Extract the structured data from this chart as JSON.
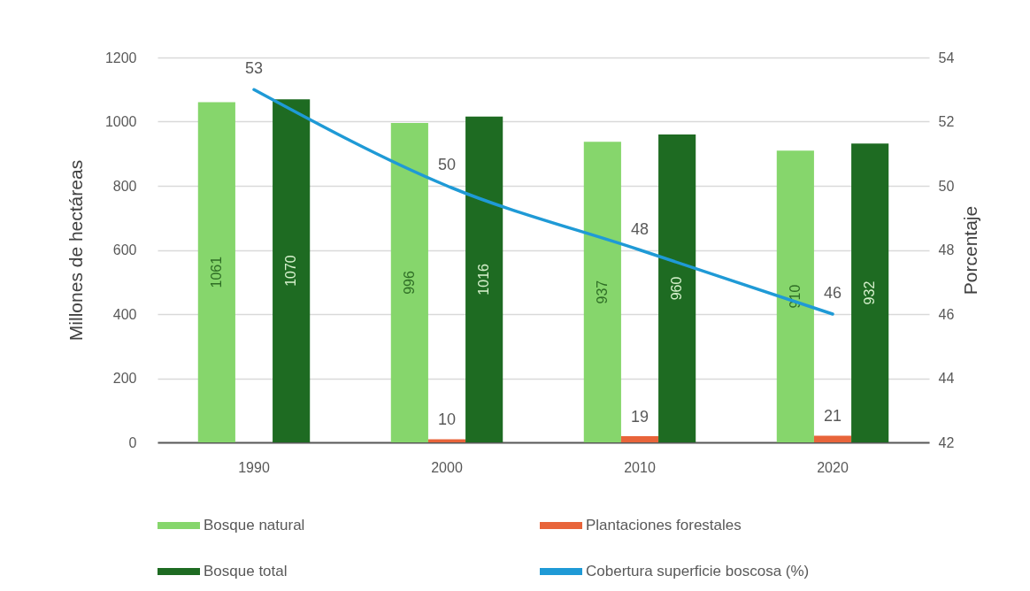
{
  "chart_data": {
    "type": "bar",
    "categories": [
      "1990",
      "2000",
      "2010",
      "2020"
    ],
    "ylabel": "Millones de hectáreas",
    "y2label": "Porcentaje",
    "ylim": [
      0,
      1200
    ],
    "yticks": [
      0,
      200,
      400,
      600,
      800,
      1000,
      1200
    ],
    "y2lim": [
      42,
      54
    ],
    "y2ticks": [
      42,
      44,
      46,
      48,
      50,
      52,
      54
    ],
    "grid": "y",
    "legend": "bottom",
    "data_labels": true,
    "series": [
      {
        "name": "Bosque natural",
        "color": "#86d66c",
        "values": [
          1061,
          996,
          937,
          910
        ]
      },
      {
        "name": "Plantaciones forestales",
        "color": "#e8643a",
        "values": [
          null,
          10,
          19,
          21
        ]
      },
      {
        "name": "Bosque total",
        "color": "#1e6b22",
        "values": [
          1070,
          1016,
          960,
          932
        ]
      },
      {
        "name": "Cobertura superficie boscosa (%)",
        "type": "line",
        "axis": "y2",
        "color": "#1f9ad6",
        "values": [
          53,
          50,
          48,
          46
        ]
      }
    ]
  }
}
